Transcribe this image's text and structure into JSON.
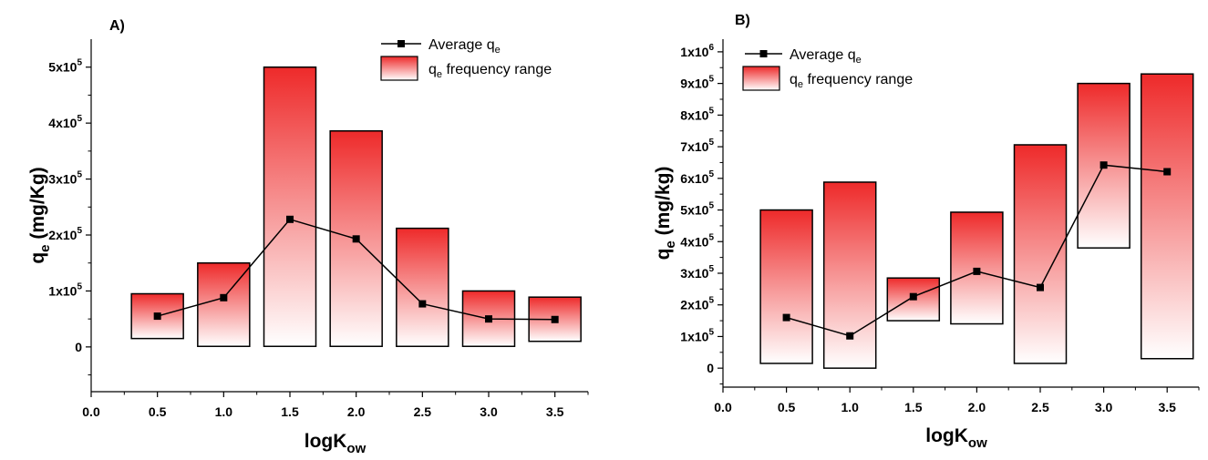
{
  "colors": {
    "bar_top": "#ee2a2a",
    "bar_bottom": "#ffffff",
    "line": "#000000",
    "marker": "#000000"
  },
  "chart_data": [
    {
      "type": "bar",
      "panel_label": "A)",
      "xlabel_base": "logK",
      "xlabel_sub": "ow",
      "ylabel_base": "q",
      "ylabel_sub": "e",
      "ylabel_rest": " (mg/Kg)",
      "xlim": [
        0.0,
        3.75
      ],
      "ylim": [
        -80000,
        550000
      ],
      "xticks": [
        "0.0",
        "0.5",
        "1.0",
        "1.5",
        "2.0",
        "2.5",
        "3.0",
        "3.5"
      ],
      "yticks": [
        {
          "value": 0,
          "mantissa": "0",
          "exp": ""
        },
        {
          "value": 100000,
          "mantissa": "1x10",
          "exp": "5"
        },
        {
          "value": 200000,
          "mantissa": "2x10",
          "exp": "5"
        },
        {
          "value": 300000,
          "mantissa": "3x10",
          "exp": "5"
        },
        {
          "value": 400000,
          "mantissa": "4x10",
          "exp": "5"
        },
        {
          "value": 500000,
          "mantissa": "5x10",
          "exp": "5"
        }
      ],
      "legend": {
        "position": "top-right",
        "line_label": "Average q",
        "line_sub": "e",
        "bar_label_pre": "q",
        "bar_sub": "e",
        "bar_label_post": " frequency range"
      },
      "x": [
        0.5,
        1.0,
        1.5,
        2.0,
        2.5,
        3.0,
        3.5
      ],
      "range_low": [
        15000,
        1000,
        1000,
        1000,
        1000,
        1000,
        10000
      ],
      "range_high": [
        95000,
        150000,
        500000,
        386000,
        212000,
        100000,
        89000
      ],
      "average": [
        55000,
        88000,
        228000,
        193000,
        77000,
        50000,
        49000
      ]
    },
    {
      "type": "bar",
      "panel_label": "B)",
      "xlabel_base": "logK",
      "xlabel_sub": "ow",
      "ylabel_base": "q",
      "ylabel_sub": "e",
      "ylabel_rest": " (mg/kg)",
      "xlim": [
        0.0,
        3.75
      ],
      "ylim": [
        -60000,
        1040000
      ],
      "xticks": [
        "0.0",
        "0.5",
        "1.0",
        "1.5",
        "2.0",
        "2.5",
        "3.0",
        "3.5"
      ],
      "yticks": [
        {
          "value": 0,
          "mantissa": "0",
          "exp": ""
        },
        {
          "value": 100000,
          "mantissa": "1x10",
          "exp": "5"
        },
        {
          "value": 200000,
          "mantissa": "2x10",
          "exp": "5"
        },
        {
          "value": 300000,
          "mantissa": "3x10",
          "exp": "5"
        },
        {
          "value": 400000,
          "mantissa": "4x10",
          "exp": "5"
        },
        {
          "value": 500000,
          "mantissa": "5x10",
          "exp": "5"
        },
        {
          "value": 600000,
          "mantissa": "6x10",
          "exp": "5"
        },
        {
          "value": 700000,
          "mantissa": "7x10",
          "exp": "5"
        },
        {
          "value": 800000,
          "mantissa": "8x10",
          "exp": "5"
        },
        {
          "value": 900000,
          "mantissa": "9x10",
          "exp": "5"
        },
        {
          "value": 1000000,
          "mantissa": "1x10",
          "exp": "6"
        }
      ],
      "legend": {
        "position": "top-left",
        "line_label": "Average q",
        "line_sub": "e",
        "bar_label_pre": "q",
        "bar_sub": "e",
        "bar_label_post": " frequency range"
      },
      "x": [
        0.5,
        1.0,
        1.5,
        2.0,
        2.5,
        3.0,
        3.5
      ],
      "range_low": [
        15000,
        0,
        150000,
        140000,
        15000,
        380000,
        30000
      ],
      "range_high": [
        500000,
        588000,
        285000,
        493000,
        706000,
        900000,
        930000
      ],
      "average": [
        160000,
        102000,
        226000,
        306000,
        255000,
        642000,
        621000
      ]
    }
  ]
}
